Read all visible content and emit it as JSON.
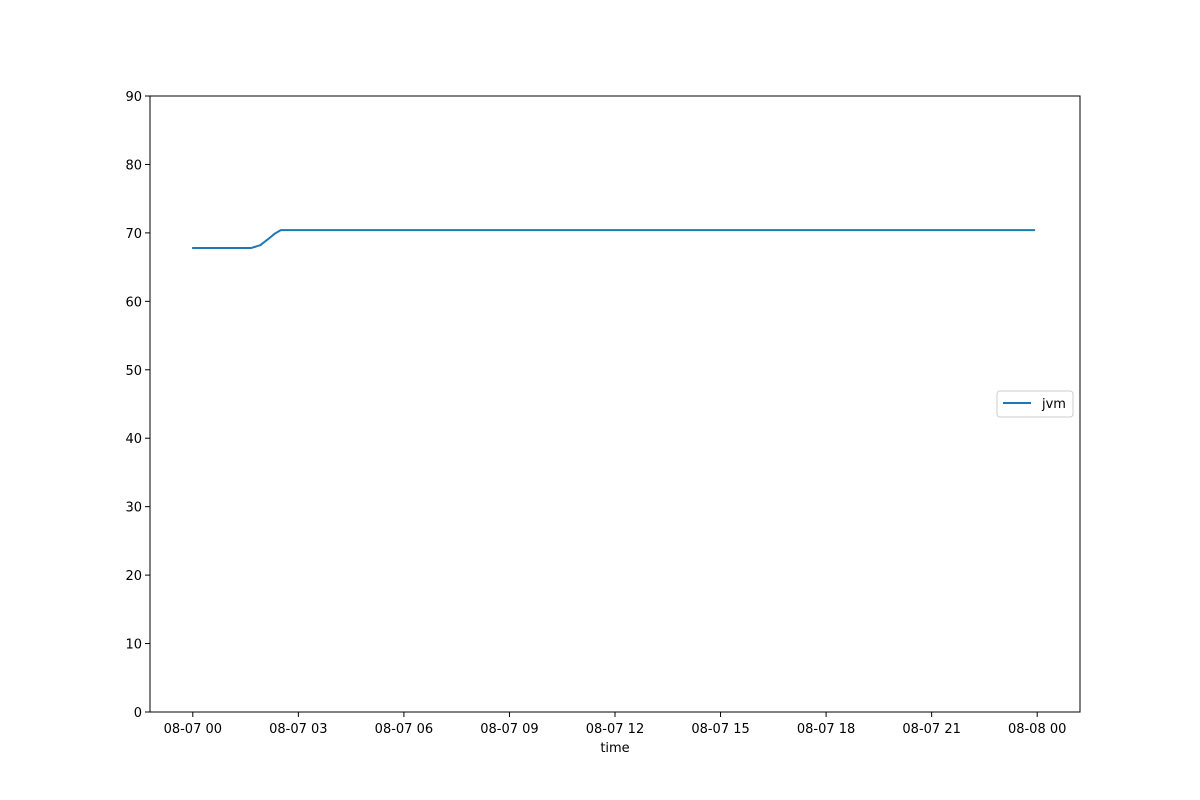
{
  "chart_data": {
    "type": "line",
    "title": "",
    "xlabel": "time",
    "ylabel": "",
    "ylim": [
      0,
      90
    ],
    "xlim": [
      "2023-08-06 22:47",
      "2023-08-08 01:13"
    ],
    "grid": false,
    "legend": {
      "position": "center-right"
    },
    "y_ticks": [
      0,
      10,
      20,
      30,
      40,
      50,
      60,
      70,
      80,
      90
    ],
    "x_ticks": [
      {
        "x": "2023-08-07 00:00",
        "label": "08-07 00"
      },
      {
        "x": "2023-08-07 03:00",
        "label": "08-07 03"
      },
      {
        "x": "2023-08-07 06:00",
        "label": "08-07 06"
      },
      {
        "x": "2023-08-07 09:00",
        "label": "08-07 09"
      },
      {
        "x": "2023-08-07 12:00",
        "label": "08-07 12"
      },
      {
        "x": "2023-08-07 15:00",
        "label": "08-07 15"
      },
      {
        "x": "2023-08-07 18:00",
        "label": "08-07 18"
      },
      {
        "x": "2023-08-07 21:00",
        "label": "08-07 21"
      },
      {
        "x": "2023-08-08 00:00",
        "label": "08-08 00"
      }
    ],
    "series": [
      {
        "name": "jvm",
        "color": "#1f77b4",
        "x": [
          "2023-08-07 00:00",
          "2023-08-07 00:30",
          "2023-08-07 01:00",
          "2023-08-07 01:30",
          "2023-08-07 01:40",
          "2023-08-07 01:55",
          "2023-08-07 02:10",
          "2023-08-07 02:20",
          "2023-08-07 02:30",
          "2023-08-07 03:00",
          "2023-08-07 06:00",
          "2023-08-07 09:00",
          "2023-08-07 12:00",
          "2023-08-07 15:00",
          "2023-08-07 18:00",
          "2023-08-07 21:00",
          "2023-08-07 23:55"
        ],
        "y": [
          67.8,
          67.8,
          67.8,
          67.8,
          67.8,
          68.2,
          69.2,
          69.9,
          70.4,
          70.4,
          70.4,
          70.4,
          70.4,
          70.4,
          70.4,
          70.4,
          70.4
        ]
      }
    ]
  }
}
